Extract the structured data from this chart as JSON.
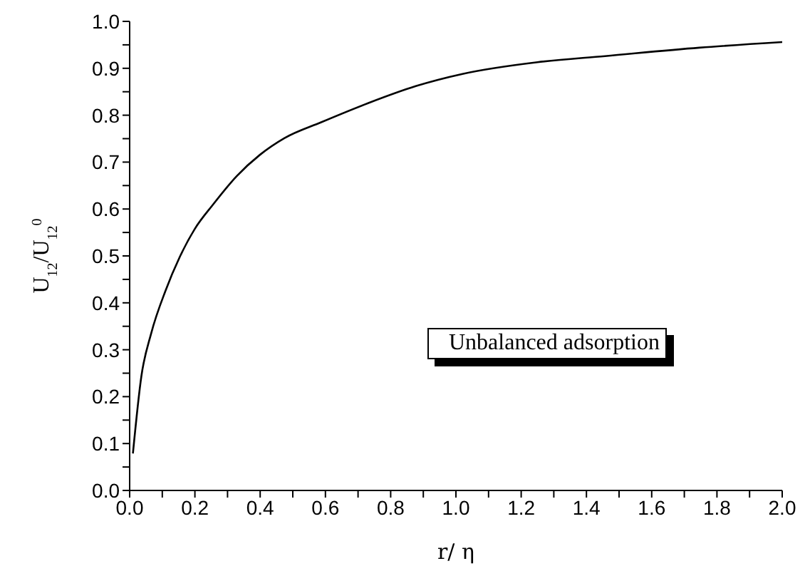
{
  "chart_data": {
    "type": "line",
    "xlabel": "r/ η",
    "ylabel": "U$_{12}$/U$_{12}$$^{0}$",
    "annotations": [
      "Unbalanced adsorption"
    ],
    "xlim": [
      0,
      2
    ],
    "ylim": [
      0,
      1
    ],
    "xticks": [
      {
        "value": 0,
        "label": "0.0"
      },
      {
        "value": 0.1,
        "label": null
      },
      {
        "value": 0.2,
        "label": "0.2"
      },
      {
        "value": 0.3,
        "label": null
      },
      {
        "value": 0.4,
        "label": "0.4"
      },
      {
        "value": 0.5,
        "label": null
      },
      {
        "value": 0.6,
        "label": "0.6"
      },
      {
        "value": 0.7,
        "label": null
      },
      {
        "value": 0.8,
        "label": "0.8"
      },
      {
        "value": 0.9,
        "label": null
      },
      {
        "value": 1,
        "label": "1.0"
      },
      {
        "value": 1.1,
        "label": null
      },
      {
        "value": 1.2,
        "label": "1.2"
      },
      {
        "value": 1.3,
        "label": null
      },
      {
        "value": 1.4,
        "label": "1.4"
      },
      {
        "value": 1.5,
        "label": null
      },
      {
        "value": 1.6,
        "label": "1.6"
      },
      {
        "value": 1.7,
        "label": null
      },
      {
        "value": 1.8,
        "label": "1.8"
      },
      {
        "value": 1.9,
        "label": null
      },
      {
        "value": 2,
        "label": "2.0"
      }
    ],
    "yticks": [
      {
        "value": 0,
        "label": "0.0"
      },
      {
        "value": 0.05,
        "label": null
      },
      0.1,
      {
        "value": 0.15,
        "label": null
      },
      0.2,
      {
        "value": 0.25,
        "label": null
      },
      0.3,
      {
        "value": 0.35,
        "label": null
      },
      0.4,
      {
        "value": 0.45,
        "label": null
      },
      0.5,
      {
        "value": 0.55,
        "label": null
      },
      0.6,
      {
        "value": 0.65,
        "label": null
      },
      0.7,
      {
        "value": 0.75,
        "label": null
      },
      0.8,
      {
        "value": 0.85,
        "label": null
      },
      0.9,
      {
        "value": 0.95,
        "label": null
      },
      {
        "value": 1,
        "label": "1.0"
      }
    ],
    "grid": false,
    "marker": "none",
    "line_style": "solid",
    "series": [
      {
        "color": "#000000",
        "x": [
          0.01,
          0.036,
          0.066,
          0.11,
          0.153,
          0.2,
          0.255,
          0.328,
          0.4,
          0.474,
          0.587,
          0.732,
          0.877,
          1.02,
          1.25,
          1.457,
          1.746,
          2.0
        ],
        "values": [
          0.079,
          0.244,
          0.335,
          0.426,
          0.497,
          0.558,
          0.609,
          0.67,
          0.716,
          0.751,
          0.785,
          0.826,
          0.862,
          0.888,
          0.913,
          0.926,
          0.944,
          0.956
        ]
      }
    ]
  }
}
